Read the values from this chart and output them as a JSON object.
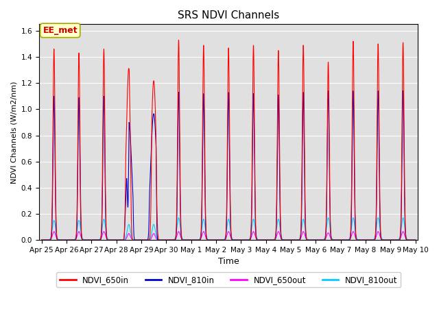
{
  "title": "SRS NDVI Channels",
  "xlabel": "Time",
  "ylabel": "NDVI Channels (W/m2/nm)",
  "xlim_days": [
    -0.1,
    15.1
  ],
  "ylim": [
    0,
    1.65
  ],
  "yticks": [
    0.0,
    0.2,
    0.4,
    0.6,
    0.8,
    1.0,
    1.2,
    1.4,
    1.6
  ],
  "background_color": "#e0e0e0",
  "annotation_text": "EE_met",
  "annotation_color": "#cc0000",
  "annotation_bg": "#ffffcc",
  "series": {
    "NDVI_650in": {
      "color": "#ff0000",
      "lw": 0.8
    },
    "NDVI_810in": {
      "color": "#0000cc",
      "lw": 0.8
    },
    "NDVI_650out": {
      "color": "#ff00ff",
      "lw": 0.8
    },
    "NDVI_810out": {
      "color": "#00ccff",
      "lw": 0.8
    }
  },
  "xtick_labels": [
    "Apr 25",
    "Apr 26",
    "Apr 27",
    "Apr 28",
    "Apr 29",
    "Apr 30",
    "May 1",
    "May 2",
    "May 3",
    "May 4",
    "May 5",
    "May 6",
    "May 7",
    "May 8",
    "May 9",
    "May 10"
  ],
  "xtick_positions": [
    0,
    1,
    2,
    3,
    4,
    5,
    6,
    7,
    8,
    9,
    10,
    11,
    12,
    13,
    14,
    15
  ]
}
